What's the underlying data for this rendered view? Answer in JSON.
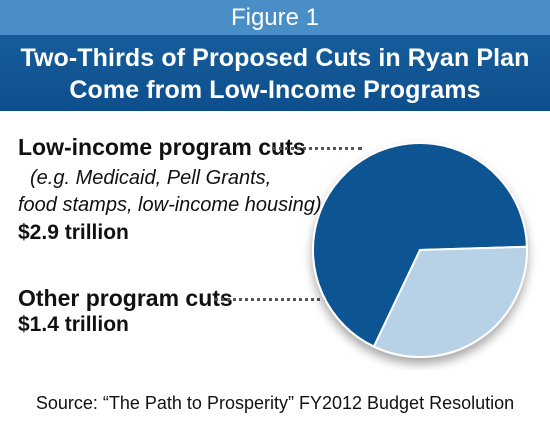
{
  "figure_label": "Figure 1",
  "title_lines": [
    "Two-Thirds of Proposed Cuts in Ryan Plan",
    "Come from Low-Income Programs"
  ],
  "source": "Source: “The Path to Prosperity” FY2012 Budget Resolution",
  "colors": {
    "header_light": "#4A8EC8",
    "header_dark": "#13578F",
    "slice_low_income": "#0F5592",
    "slice_other": "#B7D1E7"
  },
  "chart_data": {
    "type": "pie",
    "slices": [
      {
        "name": "Low-income program cuts",
        "detail_lines": [
          "(e.g. Medicaid, Pell Grants,",
          "food stamps, low-income housing)"
        ],
        "value": 2.9,
        "value_label": "$2.9 trillion",
        "color": "#0F5592"
      },
      {
        "name": "Other program cuts",
        "detail_lines": [],
        "value": 1.4,
        "value_label": "$1.4 trillion",
        "color": "#B7D1E7"
      }
    ]
  }
}
